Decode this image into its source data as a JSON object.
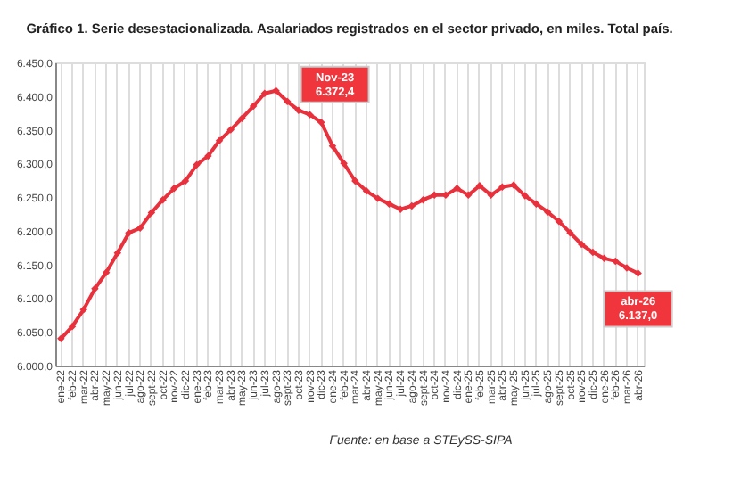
{
  "chart_data": {
    "type": "line",
    "title": "Gráfico 1. Serie desestacionalizada. Asalariados registrados en el sector privado, en miles. Total país.",
    "categories": [
      "ene-22",
      "feb-22",
      "mar-22",
      "abr-22",
      "may-22",
      "jun-22",
      "jul-22",
      "ago-22",
      "sept-22",
      "oct-22",
      "nov-22",
      "dic-22",
      "ene-23",
      "feb-23",
      "mar-23",
      "abr-23",
      "may-23",
      "jun-23",
      "jul-23",
      "ago-23",
      "sept-23",
      "oct-23",
      "nov-23",
      "dic-23",
      "ene-24",
      "feb-24",
      "mar-24",
      "abr-24",
      "may-24",
      "jun-24",
      "jul-24",
      "ago-24",
      "sept-24",
      "oct-24",
      "nov-24",
      "dic-24",
      "ene-25",
      "feb-25",
      "mar-25",
      "abr-25",
      "may-25",
      "jun-25",
      "jul-25",
      "ago-25",
      "sept-25",
      "oct-25",
      "nov-25",
      "dic-25",
      "ene-26",
      "feb-26",
      "mar-26",
      "abr-26"
    ],
    "series": [
      {
        "color": "#e8313c",
        "values": [
          6040,
          6058,
          6083,
          6114,
          6138,
          6167,
          6197,
          6204,
          6227,
          6246,
          6263,
          6274,
          6298,
          6311,
          6334,
          6350,
          6367,
          6385,
          6404,
          6408,
          6392,
          6379,
          6372.4,
          6361,
          6326,
          6300,
          6274,
          6259,
          6248,
          6240,
          6232,
          6237,
          6246,
          6253,
          6253,
          6263,
          6253,
          6267,
          6253,
          6265,
          6268,
          6252,
          6240,
          6228,
          6214,
          6197,
          6180,
          6168,
          6159,
          6155,
          6145,
          6137.0
        ]
      }
    ],
    "ylim": [
      6000,
      6450
    ],
    "yticks": [
      {
        "value": 6000,
        "label": "6.000,0"
      },
      {
        "value": 6050,
        "label": "6.050,0"
      },
      {
        "value": 6100,
        "label": "6.100,0"
      },
      {
        "value": 6150,
        "label": "6.150,0"
      },
      {
        "value": 6200,
        "label": "6.200,0"
      },
      {
        "value": 6250,
        "label": "6.250,0"
      },
      {
        "value": 6300,
        "label": "6.300,0"
      },
      {
        "value": 6350,
        "label": "6.350,0"
      },
      {
        "value": 6400,
        "label": "6.400,0"
      },
      {
        "value": 6450,
        "label": "6.450,0"
      }
    ],
    "grid": "x",
    "marker": "diamond",
    "line_style": "solid",
    "annotations": [
      {
        "text": "Nov-23\n6.372,4",
        "x": "nov-23",
        "y": 6372.4
      },
      {
        "text": "abr-26\n6.137,0",
        "x": "abr-26",
        "y": 6137.0
      },
      "Fuente: en base a STEySS-SIPA"
    ]
  }
}
